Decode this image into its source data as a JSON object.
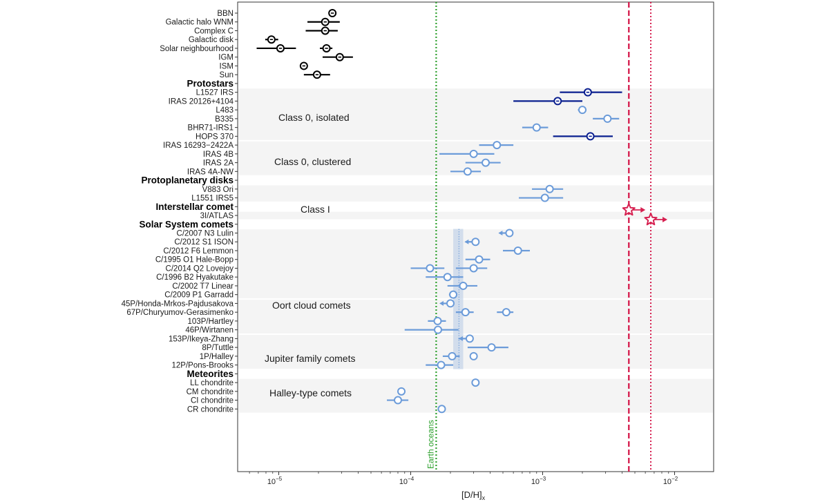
{
  "chart_data": {
    "type": "scatter",
    "title": "",
    "xlabel": "[D/H]",
    "xlabel_sub": "x",
    "xscale": "log",
    "xlim": [
      5e-06,
      0.02
    ],
    "xticks": [
      {
        "value": 1e-05,
        "base": "10",
        "exp": "−5"
      },
      {
        "value": 0.0001,
        "base": "10",
        "exp": "−4"
      },
      {
        "value": 0.001,
        "base": "10",
        "exp": "−3"
      },
      {
        "value": 0.01,
        "base": "10",
        "exp": "−2"
      }
    ],
    "colors": {
      "reference": "#000000",
      "class0": "#0a1f8f",
      "light": "#6b9bd9",
      "comet3i": "#d62050",
      "earth": "#2ca02c",
      "band": "#c7d6ea",
      "shade": "#f4f4f4"
    },
    "earth_line": {
      "value": 0.000156,
      "label": "Earth oceans"
    },
    "interstellar_lines": [
      0.0045,
      0.0066
    ],
    "oort_band": {
      "low": 0.00021,
      "high": 0.00025,
      "center": 0.000232
    },
    "groups": [
      {
        "label": "",
        "rows": [
          {
            "name": "BBN",
            "value": 2.55e-05,
            "err_lo": 2.55e-05,
            "err_hi": 2.55e-05,
            "style": "reference"
          },
          {
            "name": "Galactic halo WNM",
            "value": 2.25e-05,
            "err_lo": 1.65e-05,
            "err_hi": 2.9e-05,
            "style": "reference"
          },
          {
            "name": "Complex C",
            "value": 2.25e-05,
            "err_lo": 1.6e-05,
            "err_hi": 2.8e-05,
            "style": "reference"
          },
          {
            "name": "Galactic disk",
            "value": 8.8e-06,
            "err_lo": 7.9e-06,
            "err_hi": 9.9e-06,
            "style": "reference"
          },
          {
            "name": "Solar neighbourhood",
            "value": 1.03e-05,
            "err_lo": 6.8e-06,
            "err_hi": 1.35e-05,
            "style": "reference",
            "extra": {
              "value": 2.3e-05,
              "err_lo": 2.05e-05,
              "err_hi": 2.55e-05
            }
          },
          {
            "name": "IGM",
            "value": 2.9e-05,
            "err_lo": 2.15e-05,
            "err_hi": 3.65e-05,
            "style": "reference"
          },
          {
            "name": "ISM",
            "value": 1.55e-05,
            "err_lo": 1.55e-05,
            "err_hi": 1.55e-05,
            "style": "reference"
          },
          {
            "name": "Sun",
            "value": 1.95e-05,
            "err_lo": 1.55e-05,
            "err_hi": 2.45e-05,
            "style": "reference"
          }
        ]
      },
      {
        "label": "Protostars",
        "rows": [
          {
            "name": "L1527 IRS",
            "value": 0.0022,
            "err_lo": 0.00135,
            "err_hi": 0.004,
            "style": "class0"
          },
          {
            "name": "IRAS 20126+4104",
            "value": 0.0013,
            "err_lo": 0.0006,
            "err_hi": 0.002,
            "style": "class0"
          },
          {
            "name": "L483",
            "value": 0.002,
            "err_lo": 0.00185,
            "err_hi": 0.00215,
            "style": "light"
          },
          {
            "name": "B335",
            "value": 0.0031,
            "err_lo": 0.0024,
            "err_hi": 0.0038,
            "style": "light"
          },
          {
            "name": "BHR71-IRS1",
            "value": 0.0009,
            "err_lo": 0.0007,
            "err_hi": 0.0011,
            "style": "light"
          },
          {
            "name": "HOPS 370",
            "value": 0.0023,
            "err_lo": 0.0012,
            "err_hi": 0.0034,
            "style": "class0"
          },
          {
            "name": "IRAS 16293−2422A",
            "value": 0.00045,
            "err_lo": 0.00033,
            "err_hi": 0.0006,
            "style": "light"
          },
          {
            "name": "IRAS 4B",
            "value": 0.0003,
            "err_lo": 0.000165,
            "err_hi": 0.00043,
            "style": "light"
          },
          {
            "name": "IRAS 2A",
            "value": 0.00037,
            "err_lo": 0.00026,
            "err_hi": 0.00048,
            "style": "light"
          },
          {
            "name": "IRAS 4A-NW",
            "value": 0.00027,
            "err_lo": 0.0002,
            "err_hi": 0.00034,
            "style": "light"
          }
        ]
      },
      {
        "label": "Protoplanetary disks",
        "rows": [
          {
            "name": "V883 Ori",
            "value": 0.00113,
            "err_lo": 0.00083,
            "err_hi": 0.00143,
            "style": "light"
          },
          {
            "name": "L1551 IRS5",
            "value": 0.00104,
            "err_lo": 0.00066,
            "err_hi": 0.00143,
            "style": "light"
          }
        ]
      },
      {
        "label": "Interstellar comet",
        "rows": [
          {
            "name": "3I/ATLAS",
            "style": "comet3i",
            "stars": [
              0.0045,
              0.0066
            ]
          }
        ]
      },
      {
        "label": "Solar System comets",
        "rows": [
          {
            "name": "C/2007 N3 Lulin",
            "value": 0.00056,
            "err_lo": 0.00047,
            "err_hi": 0.00056,
            "style": "light",
            "limit": "upper"
          },
          {
            "name": "C/2012 S1 ISON",
            "value": 0.00031,
            "err_lo": 0.00026,
            "err_hi": 0.00031,
            "style": "light",
            "limit": "upper"
          },
          {
            "name": "C/2012 F6 Lemmon",
            "value": 0.00065,
            "err_lo": 0.0005,
            "err_hi": 0.0008,
            "style": "light"
          },
          {
            "name": "C/1995 O1 Hale-Bopp",
            "value": 0.00033,
            "err_lo": 0.00026,
            "err_hi": 0.0004,
            "style": "light"
          },
          {
            "name": "C/2014 Q2 Lovejoy",
            "value": 0.00014,
            "err_lo": 0.0001,
            "err_hi": 0.00018,
            "style": "light",
            "extra": {
              "value": 0.0003,
              "err_lo": 0.00022,
              "err_hi": 0.00038
            }
          },
          {
            "name": "C/1996 B2 Hyakutake",
            "value": 0.00019,
            "err_lo": 0.00013,
            "err_hi": 0.00025,
            "style": "light"
          },
          {
            "name": "C/2002 T7 Linear",
            "value": 0.00025,
            "err_lo": 0.00019,
            "err_hi": 0.00032,
            "style": "light"
          },
          {
            "name": "C/2009 P1 Garradd",
            "value": 0.00021,
            "err_lo": 0.000195,
            "err_hi": 0.000225,
            "style": "light"
          },
          {
            "name": "45P/Honda-Mrkos-Pajdusakova",
            "value": 0.0002,
            "err_lo": 0.00017,
            "err_hi": 0.0002,
            "style": "light",
            "limit": "upper"
          },
          {
            "name": "67P/Churyumov-Gerasimenko",
            "value": 0.00026,
            "err_lo": 0.00022,
            "err_hi": 0.0003,
            "style": "light",
            "extra": {
              "value": 0.00053,
              "err_lo": 0.00045,
              "err_hi": 0.0006
            }
          },
          {
            "name": "103P/Hartley",
            "value": 0.00016,
            "err_lo": 0.000135,
            "err_hi": 0.000185,
            "style": "light"
          },
          {
            "name": "46P/Wirtanen",
            "value": 0.000161,
            "err_lo": 9e-05,
            "err_hi": 0.00023,
            "style": "light"
          },
          {
            "name": "153P/Ikeya-Zhang",
            "value": 0.00028,
            "err_lo": 0.00023,
            "err_hi": 0.00028,
            "style": "light",
            "limit": "upper"
          },
          {
            "name": "8P/Tuttle",
            "value": 0.00041,
            "err_lo": 0.00027,
            "err_hi": 0.00055,
            "style": "light"
          },
          {
            "name": "1P/Halley",
            "value": 0.000206,
            "err_lo": 0.000175,
            "err_hi": 0.000235,
            "style": "light",
            "extra": {
              "value": 0.0003,
              "err_lo": 0.0003,
              "err_hi": 0.0003
            }
          },
          {
            "name": "12P/Pons-Brooks",
            "value": 0.00017,
            "err_lo": 0.00013,
            "err_hi": 0.00021,
            "style": "light"
          }
        ]
      },
      {
        "label": "Meteorites",
        "rows": [
          {
            "name": "LL chondrite",
            "value": 0.00031,
            "err_lo": 0.00031,
            "err_hi": 0.00031,
            "style": "light"
          },
          {
            "name": "CM chondrite",
            "value": 8.5e-05,
            "err_lo": 8.5e-05,
            "err_hi": 8.5e-05,
            "style": "light"
          },
          {
            "name": "CI chondrite",
            "value": 8e-05,
            "err_lo": 6.6e-05,
            "err_hi": 9.6e-05,
            "style": "light"
          },
          {
            "name": "CR chondrite",
            "value": 0.000172,
            "err_lo": 0.000161,
            "err_hi": 0.000183,
            "style": "light"
          }
        ]
      }
    ],
    "annotations": [
      {
        "text": "Class 0, isolated"
      },
      {
        "text": "Class 0, clustered"
      },
      {
        "text": "Class I"
      },
      {
        "text": "Oort cloud comets"
      },
      {
        "text": "Jupiter family comets"
      },
      {
        "text": "Halley-type comets"
      }
    ]
  }
}
